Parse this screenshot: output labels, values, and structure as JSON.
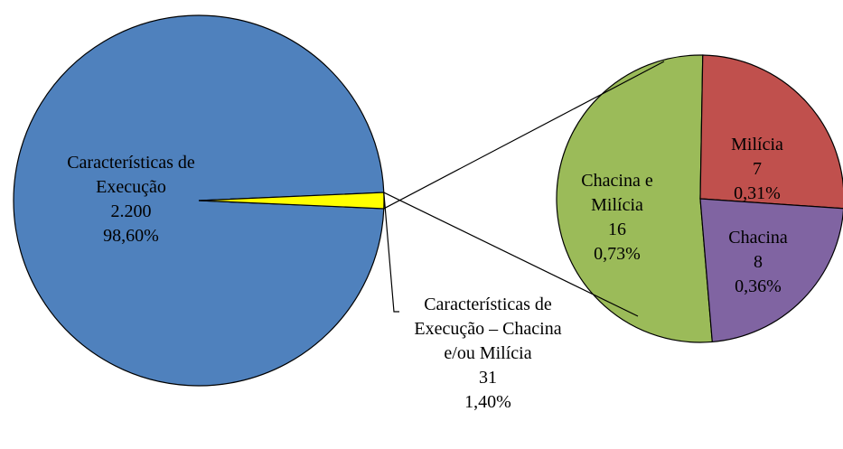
{
  "chart_data": {
    "type": "pie-of-pie",
    "main": {
      "categories": [
        "Características de Execução",
        "Características de Execução – Chacina e/ou Milícia"
      ],
      "values": [
        2200,
        31
      ],
      "value_labels": [
        "2.200",
        "31"
      ],
      "percents": [
        98.6,
        1.4
      ],
      "percent_labels": [
        "98,60%",
        "1,40%"
      ],
      "colors": [
        "#4f81bd",
        "#ffff00"
      ]
    },
    "sub": {
      "categories": [
        "Chacina e Milícia",
        "Chacina",
        "Milícia"
      ],
      "values": [
        16,
        8,
        7
      ],
      "percents": [
        0.73,
        0.36,
        0.31
      ],
      "percent_labels": [
        "0,73%",
        "0,36%",
        "0,31%"
      ],
      "colors": [
        "#9bbb59",
        "#c0504d",
        "#8064a2"
      ]
    }
  }
}
